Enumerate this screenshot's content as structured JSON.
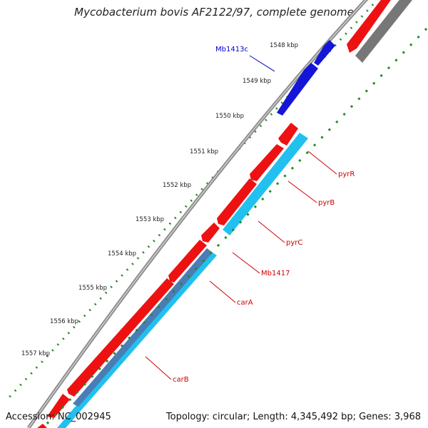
{
  "title": "Mycobacterium bovis AF2122/97, complete genome",
  "footer": {
    "accession": "Accession: NC_002945",
    "summary": "Topology: circular; Length: 4,345,492 bp; Genes: 3,968"
  },
  "ticks": [
    {
      "label": "1548 kbp"
    },
    {
      "label": "1549 kbp"
    },
    {
      "label": "1550 kbp"
    },
    {
      "label": "1551 kbp"
    },
    {
      "label": "1552 kbp"
    },
    {
      "label": "1553 kbp"
    },
    {
      "label": "1554 kbp"
    },
    {
      "label": "1555 kbp"
    },
    {
      "label": "1556 kbp"
    },
    {
      "label": "1557 kbp"
    }
  ],
  "gene_labels": [
    {
      "name": "Mb1413c",
      "color": "#0000cc"
    },
    {
      "name": "pyrR",
      "color": "#cc0000"
    },
    {
      "name": "pyrB",
      "color": "#cc0000"
    },
    {
      "name": "pyrC",
      "color": "#cc0000"
    },
    {
      "name": "Mb1417",
      "color": "#cc0000"
    },
    {
      "name": "carA",
      "color": "#cc0000"
    },
    {
      "name": "carB",
      "color": "#cc0000"
    }
  ],
  "colors": {
    "backbone": "#8a8a8a",
    "forward_gene": "#ee1111",
    "reverse_gene": "#1515d8",
    "cog_cyan": "#22c0ee",
    "cog_gray": "#777777",
    "tick_green": "#228b22"
  }
}
